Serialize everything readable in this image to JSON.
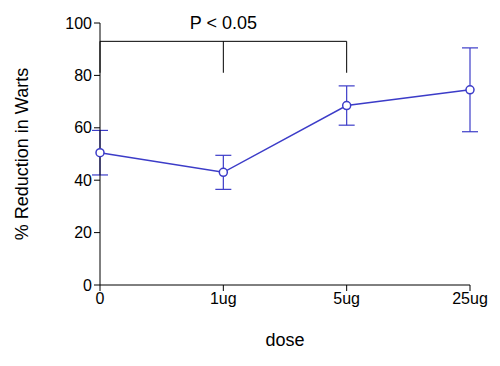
{
  "chart_data": {
    "type": "line",
    "categories": [
      "0",
      "1ug",
      "5ug",
      "25ug"
    ],
    "values": [
      50.5,
      43,
      68.5,
      74.5
    ],
    "errors": [
      8.5,
      6.5,
      7.5,
      16
    ],
    "color": "#3c3cc8",
    "marker": "circle",
    "xlabel": "dose",
    "ylabel": "% Reduction in Warts",
    "ylim": [
      0,
      100
    ],
    "yticks": [
      0,
      20,
      40,
      60,
      80,
      100
    ],
    "grid": false,
    "annotations": [
      {
        "text": "P < 0.05",
        "categories": [
          "0",
          "1ug",
          "5ug"
        ]
      }
    ]
  }
}
